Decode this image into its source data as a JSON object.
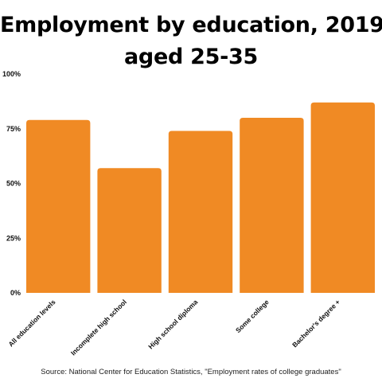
{
  "chart_data": {
    "type": "bar",
    "title": "Employment by education, 2019",
    "subtitle": "aged 25-35",
    "categories": [
      "All education levels",
      "Incomplete high school",
      "High school diploma",
      "Some college",
      "Bachelor's degree +"
    ],
    "values": [
      79,
      57,
      74,
      80,
      87
    ],
    "yticks": [
      "0%",
      "25%",
      "50%",
      "75%",
      "100%"
    ],
    "ylim": [
      0,
      100
    ],
    "xlabel": "",
    "ylabel": "",
    "grid": false,
    "bar_color": "#F08A24",
    "source": "Source: National Center for Education Statistics, \"Employment rates of college graduates\""
  }
}
